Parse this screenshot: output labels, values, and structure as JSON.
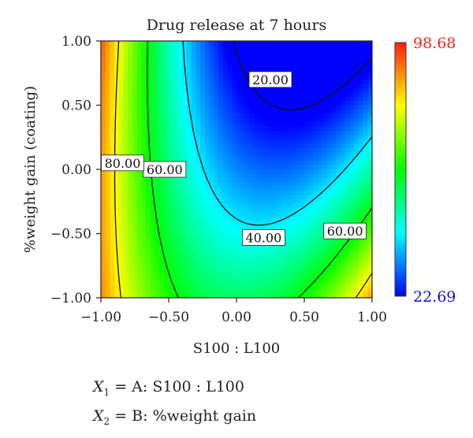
{
  "chart_data": {
    "type": "contour",
    "title": "Drug release at 7 hours",
    "xlabel": "S100 : L100",
    "ylabel": "%weight gain (coating)",
    "xlim": [
      -1,
      1
    ],
    "ylim": [
      -1,
      1
    ],
    "xticks": [
      "−1.00",
      "−0.50",
      "0.00",
      "0.50",
      "1.00"
    ],
    "yticks": [
      "−1.00",
      "−0.50",
      "0.00",
      "0.50",
      "1.00"
    ],
    "colorbar": {
      "max_label": "98.68",
      "min_label": "22.69",
      "max_color": "#ff2020",
      "min_color": "#1010d0"
    },
    "value_range": [
      22.69,
      98.68
    ],
    "contour_levels": [
      {
        "label": "20.00",
        "x": 0.25,
        "y": 0.7
      },
      {
        "label": "40.00",
        "x": 0.2,
        "y": -0.53
      },
      {
        "label": "60.00",
        "x": -0.53,
        "y": 0.0
      },
      {
        "label": "60.00",
        "x": 0.8,
        "y": -0.48
      },
      {
        "label": "80.00",
        "x": -0.84,
        "y": 0.05
      }
    ]
  },
  "legend": [
    {
      "symbol": "X",
      "sub": "1",
      "text": "= A: S100 : L100"
    },
    {
      "symbol": "X",
      "sub": "2",
      "text": "= B: %weight gain"
    }
  ]
}
